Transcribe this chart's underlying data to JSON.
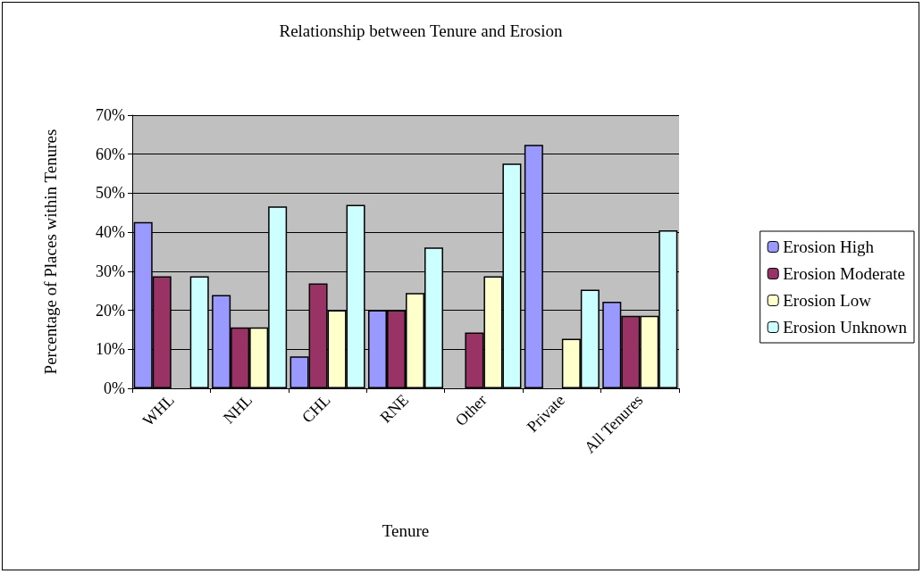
{
  "chart_data": {
    "type": "bar",
    "title": "Relationship between Tenure and Erosion",
    "xlabel": "Tenure",
    "ylabel": "Percentage of Places within Tenures",
    "categories": [
      "WHL",
      "NHL",
      "CHL",
      "RNE",
      "Other",
      "Private",
      "All Tenures"
    ],
    "series": [
      {
        "name": "Erosion High",
        "color": "#9999ff",
        "values": [
          42.6,
          23.9,
          8.2,
          20,
          null,
          62.4,
          22.2
        ]
      },
      {
        "name": "Erosion Moderate",
        "color": "#993366",
        "values": [
          28.7,
          15.6,
          26.9,
          20,
          14.3,
          null,
          18.6
        ]
      },
      {
        "name": "Erosion Low",
        "color": "#ffffcc",
        "values": [
          null,
          15.6,
          20,
          24.4,
          28.7,
          12.7,
          18.6
        ]
      },
      {
        "name": "Erosion Unknown",
        "color": "#ccffff",
        "values": [
          28.7,
          46.6,
          47,
          36.1,
          57.6,
          25.3,
          40.5
        ]
      }
    ],
    "ylim": [
      0,
      70
    ],
    "yticks": [
      {
        "value": 0,
        "label": "0%"
      },
      {
        "value": 10,
        "label": "10%"
      },
      {
        "value": 20,
        "label": "20%"
      },
      {
        "value": 30,
        "label": "30%"
      },
      {
        "value": 40,
        "label": "40%"
      },
      {
        "value": 50,
        "label": "50%"
      },
      {
        "value": 60,
        "label": "60%"
      },
      {
        "value": 70,
        "label": "70%"
      }
    ],
    "grid": "y",
    "legend": "right"
  }
}
